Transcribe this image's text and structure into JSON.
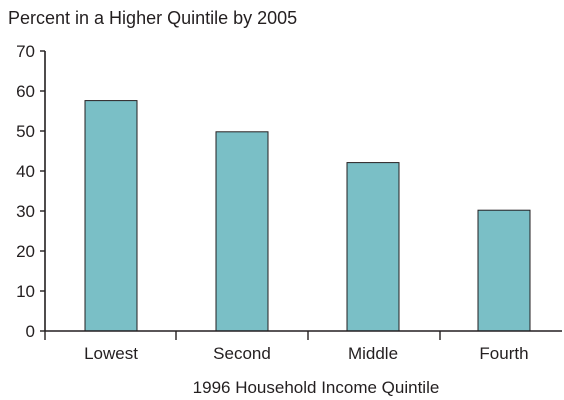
{
  "chart_data": {
    "type": "bar",
    "title": "Percent in a Higher Quintile by 2005",
    "xlabel": "1996 Household Income Quintile",
    "ylabel": "",
    "categories": [
      "Lowest",
      "Second",
      "Middle",
      "Fourth"
    ],
    "values": [
      57.6,
      49.8,
      42.1,
      30.2
    ],
    "ylim": [
      0,
      70
    ],
    "yticks": [
      0,
      10,
      20,
      30,
      40,
      50,
      60,
      70
    ],
    "grid": false,
    "legend": "none",
    "colors": {
      "bar_fill": "#7abfc6",
      "bar_stroke": "#231f20",
      "axis": "#231f20",
      "text": "#231f20"
    }
  }
}
